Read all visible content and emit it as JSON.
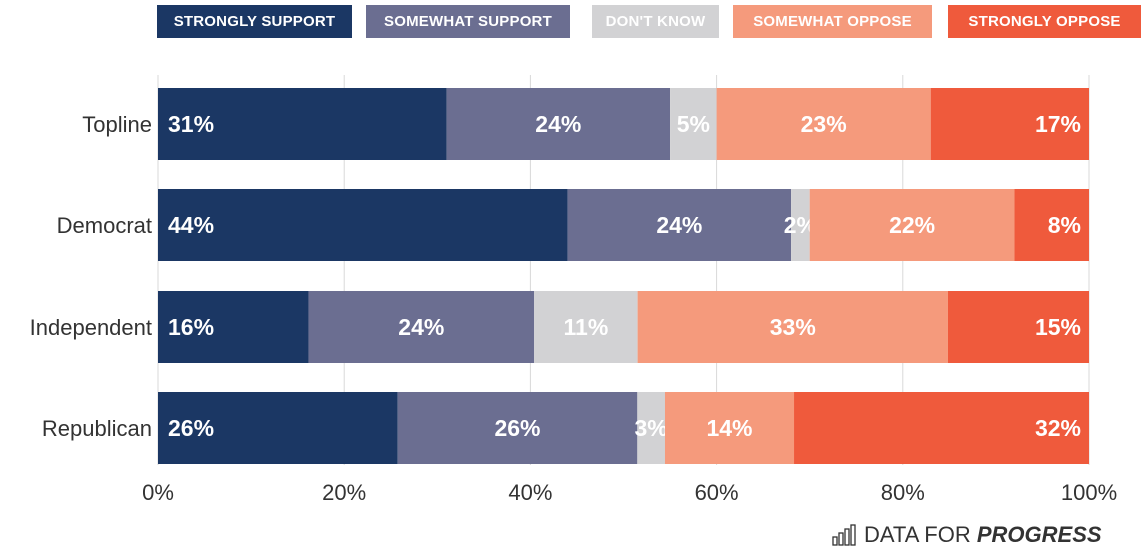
{
  "colors": {
    "strongly_support": "#1b3764",
    "somewhat_support": "#6b6e91",
    "dont_know": "#d2d2d4",
    "somewhat_oppose": "#f59a7c",
    "strongly_oppose": "#ef5a3c"
  },
  "brand": {
    "prefix": "DATA FOR",
    "bold": "PROGRESS",
    "icon": "bar-chart-icon"
  },
  "chart_data": {
    "type": "bar",
    "orientation": "horizontal",
    "stacked": true,
    "categories": [
      "Topline",
      "Democrat",
      "Independent",
      "Republican"
    ],
    "series": [
      {
        "name": "STRONGLY SUPPORT",
        "values": [
          31,
          44,
          16,
          26
        ],
        "labels": [
          "31%",
          "44%",
          "16%",
          "26%"
        ]
      },
      {
        "name": "SOMEWHAT SUPPORT",
        "values": [
          24,
          24,
          24,
          26
        ],
        "labels": [
          "24%",
          "24%",
          "24%",
          "26%"
        ]
      },
      {
        "name": "DON'T KNOW",
        "values": [
          5,
          2,
          11,
          3
        ],
        "labels": [
          "5%",
          "2%",
          "11%",
          "3%"
        ]
      },
      {
        "name": "SOMEWHAT OPPOSE",
        "values": [
          23,
          22,
          33,
          14
        ],
        "labels": [
          "23%",
          "22%",
          "33%",
          "14%"
        ]
      },
      {
        "name": "STRONGLY OPPOSE",
        "values": [
          17,
          8,
          15,
          32
        ],
        "labels": [
          "17%",
          "8%",
          "15%",
          "32%"
        ]
      }
    ],
    "xlim": [
      0,
      100
    ],
    "xticks": [
      "0%",
      "20%",
      "40%",
      "60%",
      "80%",
      "100%"
    ],
    "xtick_values": [
      0,
      20,
      40,
      60,
      80,
      100
    ],
    "grid": true,
    "legend_position": "top"
  }
}
